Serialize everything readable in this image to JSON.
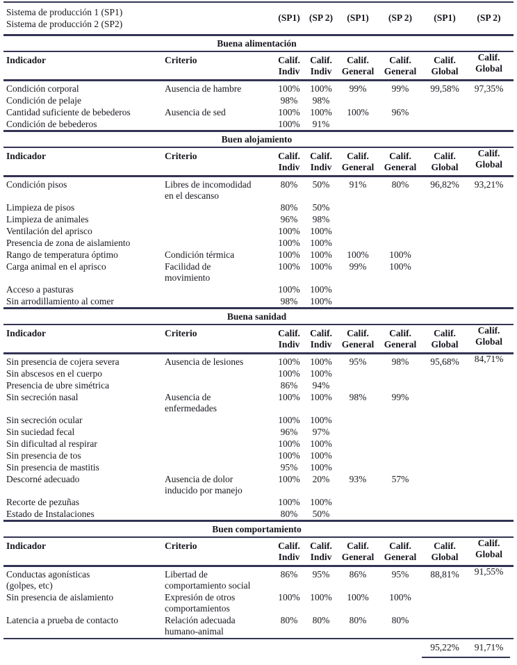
{
  "document": {
    "colors": {
      "rule_navy": "#333354",
      "text": "#16161e"
    },
    "meta": {
      "left_lines": [
        "Sistema de producción 1 (SP1)",
        "Sistema de producción 2 (SP2)"
      ],
      "sp_cols": [
        "(SP1)",
        "(SP 2)",
        "(SP1)",
        "(SP 2)",
        "(SP1)",
        "(SP 2)"
      ]
    },
    "column_headers": {
      "indicador": "Indicador",
      "criterio": "Criterio",
      "value_cols": [
        "Calif.\nIndiv",
        "Calif.\nIndiv",
        "Calif.\nGeneral",
        "Calif.\nGeneral",
        "Calif.\nGlobal",
        "Calif.\nGlobal"
      ]
    },
    "sections": [
      {
        "title": "Buena alimentación",
        "rows": [
          {
            "indicador": "Condición corporal",
            "criterio": "Ausencia de hambre",
            "values": [
              "100%",
              "100%",
              "99%",
              "99%",
              "99,58%",
              "97,35%"
            ]
          },
          {
            "indicador": "Condición de pelaje",
            "criterio": "",
            "values": [
              "98%",
              "98%",
              "",
              "",
              "",
              ""
            ]
          },
          {
            "indicador": "Cantidad suficiente de bebederos",
            "criterio": "Ausencia de sed",
            "values": [
              "100%",
              "100%",
              "100%",
              "96%",
              "",
              ""
            ]
          },
          {
            "indicador": "Condición de bebederos",
            "criterio": "",
            "values": [
              "100%",
              "91%",
              "",
              "",
              "",
              ""
            ]
          }
        ]
      },
      {
        "title": "Buen alojamiento",
        "rows": [
          {
            "indicador": "Condición pisos",
            "criterio": "Libres de incomodidad\nen el descanso",
            "values": [
              "80%",
              "50%",
              "91%",
              "80%",
              "96,82%",
              "93,21%"
            ]
          },
          {
            "indicador": "Limpieza de pisos",
            "criterio": "",
            "values": [
              "80%",
              "50%",
              "",
              "",
              "",
              ""
            ]
          },
          {
            "indicador": "Limpieza de animales",
            "criterio": "",
            "values": [
              "96%",
              "98%",
              "",
              "",
              "",
              ""
            ]
          },
          {
            "indicador": "Ventilación del aprisco",
            "criterio": "",
            "values": [
              "100%",
              "100%",
              "",
              "",
              "",
              ""
            ]
          },
          {
            "indicador": "Presencia de zona de aislamiento",
            "criterio": "",
            "values": [
              "100%",
              "100%",
              "",
              "",
              "",
              ""
            ]
          },
          {
            "indicador": "Rango de temperatura óptimo",
            "criterio": "Condición térmica",
            "values": [
              "100%",
              "100%",
              "100%",
              "100%",
              "",
              ""
            ]
          },
          {
            "indicador": "Carga animal en el aprisco",
            "criterio": "Facilidad de\nmovimiento",
            "values": [
              "100%",
              "100%",
              "99%",
              "100%",
              "",
              ""
            ]
          },
          {
            "indicador": "Acceso a pasturas",
            "criterio": "",
            "values": [
              "100%",
              "100%",
              "",
              "",
              "",
              ""
            ]
          },
          {
            "indicador": "Sin arrodillamiento al comer",
            "criterio": "",
            "values": [
              "98%",
              "100%",
              "",
              "",
              "",
              ""
            ]
          }
        ]
      },
      {
        "title": "Buena sanidad",
        "rows": [
          {
            "indicador": "Sin presencia de cojera severa",
            "criterio": "Ausencia de lesiones",
            "values": [
              "100%",
              "100%",
              "95%",
              "98%",
              "95,68%",
              "84,71%"
            ],
            "raised": true
          },
          {
            "indicador": "Sin abscesos en el cuerpo",
            "criterio": "",
            "values": [
              "100%",
              "100%",
              "",
              "",
              "",
              ""
            ]
          },
          {
            "indicador": "Presencia de ubre simétrica",
            "criterio": "",
            "values": [
              "86%",
              "94%",
              "",
              "",
              "",
              ""
            ]
          },
          {
            "indicador": "Sin secreción nasal",
            "criterio": "Ausencia de\nenfermedades",
            "values": [
              "100%",
              "100%",
              "98%",
              "99%",
              "",
              ""
            ]
          },
          {
            "indicador": "Sin secreción ocular",
            "criterio": "",
            "values": [
              "100%",
              "100%",
              "",
              "",
              "",
              ""
            ]
          },
          {
            "indicador": "Sin suciedad fecal",
            "criterio": "",
            "values": [
              "96%",
              "97%",
              "",
              "",
              "",
              ""
            ]
          },
          {
            "indicador": "Sin dificultad al respirar",
            "criterio": "",
            "values": [
              "100%",
              "100%",
              "",
              "",
              "",
              ""
            ]
          },
          {
            "indicador": "Sin presencia de tos",
            "criterio": "",
            "values": [
              "100%",
              "100%",
              "",
              "",
              "",
              ""
            ]
          },
          {
            "indicador": "Sin presencia de mastitis",
            "criterio": "",
            "values": [
              "95%",
              "100%",
              "",
              "",
              "",
              ""
            ]
          },
          {
            "indicador": "Descorné adecuado",
            "criterio": "Ausencia de dolor\ninducido por manejo",
            "values": [
              "100%",
              "20%",
              "93%",
              "57%",
              "",
              ""
            ]
          },
          {
            "indicador": "Recorte de pezuñas",
            "criterio": "",
            "values": [
              "100%",
              "100%",
              "",
              "",
              "",
              ""
            ]
          },
          {
            "indicador": "Estado de Instalaciones",
            "criterio": "",
            "values": [
              "80%",
              "50%",
              "",
              "",
              "",
              ""
            ]
          }
        ]
      },
      {
        "title": "Buen comportamiento",
        "rows": [
          {
            "indicador": "Conductas agonísticas\n(golpes, etc)",
            "criterio": "Libertad de\ncomportamiento social",
            "values": [
              "86%",
              "95%",
              "86%",
              "95%",
              "88,81%",
              "91,55%"
            ],
            "raised": true
          },
          {
            "indicador": "Sin presencia de aislamiento",
            "criterio": "Expresión de otros\ncomportamientos",
            "values": [
              "100%",
              "100%",
              "100%",
              "100%",
              "",
              ""
            ]
          },
          {
            "indicador": "Latencia a prueba de contacto",
            "criterio": "Relación adecuada\nhumano-animal",
            "values": [
              "80%",
              "80%",
              "80%",
              "80%",
              "",
              ""
            ]
          }
        ]
      }
    ],
    "totals": {
      "sp1": "95,22%",
      "sp2": "91,71%"
    }
  }
}
